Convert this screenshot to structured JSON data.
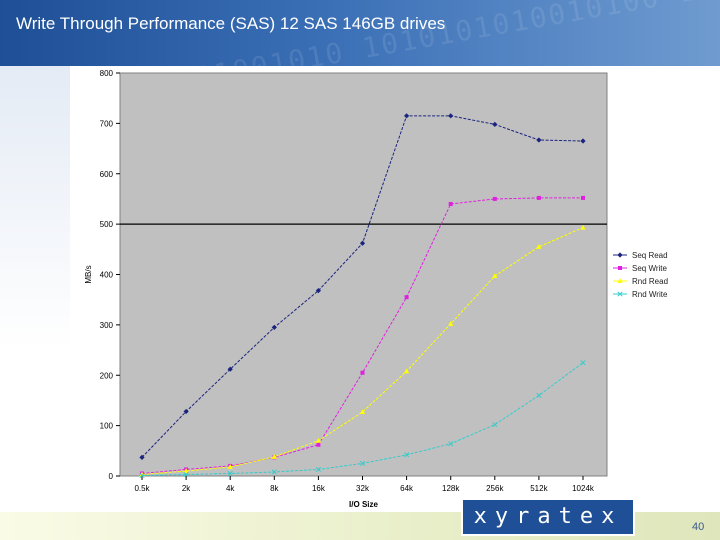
{
  "header": {
    "title": "Write Through Performance (SAS) 12 SAS 146GB drives",
    "background_pattern": "0101100101001010 1010101010010100 1001010101011001"
  },
  "footer": {
    "logo_text": "xyratex",
    "page_number": "40"
  },
  "chart_data": {
    "type": "line",
    "title": "",
    "xlabel": "I/O Size",
    "ylabel": "MB/s",
    "categories": [
      "0.5k",
      "2k",
      "4k",
      "8k",
      "16k",
      "32k",
      "64k",
      "128k",
      "256k",
      "512k",
      "1024k"
    ],
    "ylim": [
      0,
      800
    ],
    "yticks": [
      0,
      100,
      200,
      300,
      400,
      500,
      600,
      700,
      800
    ],
    "reference_line": 500,
    "grid": false,
    "legend_position": "right",
    "plot_background": "#c0c0c0",
    "series": [
      {
        "name": "Seq Read",
        "color": "#1a237e",
        "marker": "diamond",
        "values": [
          37,
          128,
          212,
          295,
          368,
          462,
          715,
          715,
          698,
          667,
          665
        ]
      },
      {
        "name": "Seq Write",
        "color": "#e020e0",
        "marker": "square",
        "values": [
          5,
          13,
          20,
          37,
          62,
          205,
          355,
          540,
          550,
          552,
          552
        ]
      },
      {
        "name": "Rnd Read",
        "color": "#ffff00",
        "marker": "triangle",
        "values": [
          3,
          10,
          18,
          38,
          70,
          127,
          208,
          302,
          397,
          455,
          493
        ]
      },
      {
        "name": "Rnd Write",
        "color": "#33cccc",
        "marker": "x",
        "values": [
          1,
          3,
          5,
          8,
          13,
          25,
          42,
          64,
          102,
          160,
          225
        ]
      }
    ]
  }
}
